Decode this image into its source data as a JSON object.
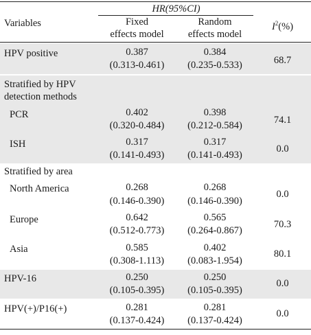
{
  "header": {
    "variables": "Variables",
    "hr_group": "HR(95%CI)",
    "fixed_line1": "Fixed",
    "fixed_line2": "effects model",
    "random_line1": "Random",
    "random_line2": "effects model",
    "i2_symbol": "I",
    "i2_sup": "2",
    "i2_unit": "(%)"
  },
  "rows": {
    "hpv_positive": {
      "label": "HPV positive",
      "fixed": "0.387",
      "fixed_ci": "(0.313-0.461)",
      "random": "0.384",
      "random_ci": "(0.235-0.533)",
      "i2": "68.7"
    },
    "detect_header_1": "Stratified by HPV",
    "detect_header_2": "detection methods",
    "pcr": {
      "label": "PCR",
      "fixed": "0.402",
      "fixed_ci": "(0.320-0.484)",
      "random": "0.398",
      "random_ci": "(0.212-0.584)",
      "i2": "74.1"
    },
    "ish": {
      "label": "ISH",
      "fixed": "0.317",
      "fixed_ci": "(0.141-0.493)",
      "random": "0.317",
      "random_ci": "(0.141-0.493)",
      "i2": "0.0"
    },
    "area_header": "Stratified by area",
    "north_america": {
      "label": "North America",
      "fixed": "0.268",
      "fixed_ci": "(0.146-0.390)",
      "random": "0.268",
      "random_ci": "(0.146-0.390)",
      "i2": "0.0"
    },
    "europe": {
      "label": "Europe",
      "fixed": "0.642",
      "fixed_ci": "(0.512-0.773)",
      "random": "0.565",
      "random_ci": "(0.264-0.867)",
      "i2": "70.3"
    },
    "asia": {
      "label": "Asia",
      "fixed": "0.585",
      "fixed_ci": "(0.308-1.113)",
      "random": "0.402",
      "random_ci": "(0.083-1.954)",
      "i2": "80.1"
    },
    "hpv16": {
      "label": "HPV-16",
      "fixed": "0.250",
      "fixed_ci": "(0.105-0.395)",
      "random": "0.250",
      "random_ci": "(0.105-0.395)",
      "i2": "0.0"
    },
    "hpv_p16": {
      "label": "HPV(+)/P16(+)",
      "fixed": "0.281",
      "fixed_ci": "(0.137-0.424)",
      "random": "0.281",
      "random_ci": "(0.137-0.424)",
      "i2": "0.0"
    }
  },
  "colors": {
    "band": "#e8e8e8",
    "rule": "#222222",
    "text": "#1a1a1a"
  }
}
